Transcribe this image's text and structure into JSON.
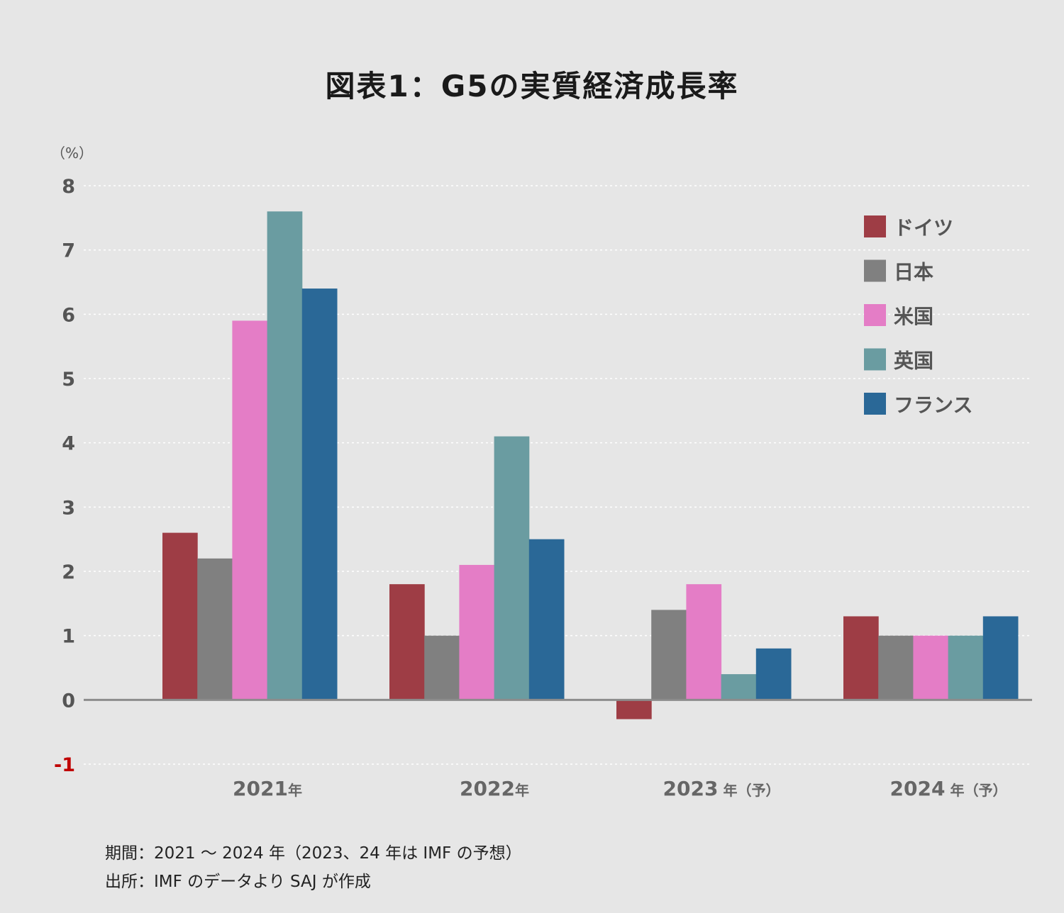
{
  "chart_data": {
    "type": "bar",
    "title": "図表1：G5の実質経済成長率",
    "ylabel": "（%）",
    "ylim": [
      -1,
      8
    ],
    "yticks": [
      "8",
      "7",
      "6",
      "5",
      "4",
      "3",
      "2",
      "1",
      "0",
      "-1"
    ],
    "categories": [
      {
        "main": "2021",
        "suffix": "年"
      },
      {
        "main": "2022",
        "suffix": "年"
      },
      {
        "main": "2023",
        "suffix": " 年（予）"
      },
      {
        "main": "2024",
        "suffix": " 年（予）"
      }
    ],
    "series": [
      {
        "name": "ドイツ",
        "color": "#9e3d45",
        "values": [
          2.6,
          1.8,
          -0.3,
          1.3
        ]
      },
      {
        "name": "日本",
        "color": "#808080",
        "values": [
          2.2,
          1.0,
          1.4,
          1.0
        ]
      },
      {
        "name": "米国",
        "color": "#e47dc6",
        "values": [
          5.9,
          2.1,
          1.8,
          1.0
        ]
      },
      {
        "name": "英国",
        "color": "#6a9ca1",
        "values": [
          7.6,
          4.1,
          0.4,
          1.0
        ]
      },
      {
        "name": "フランス",
        "color": "#2a6897",
        "values": [
          6.4,
          2.5,
          0.8,
          1.3
        ]
      }
    ],
    "grid": true,
    "legend": "top-right"
  },
  "footnotes": {
    "period": "期間：2021 〜 2024 年（2023、24 年は IMF の予想）",
    "source": "出所：IMF のデータより SAJ が作成"
  }
}
